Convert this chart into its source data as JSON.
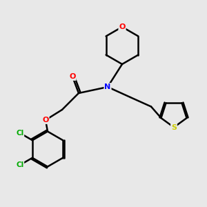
{
  "background_color": "#e8e8e8",
  "atom_colors": {
    "C": "#000000",
    "N": "#0000ff",
    "O": "#ff0000",
    "S": "#cccc00",
    "Cl": "#00aa00"
  },
  "bond_color": "#000000",
  "bond_width": 1.8,
  "figsize": [
    3.0,
    3.0
  ],
  "dpi": 100,
  "xlim": [
    0,
    10
  ],
  "ylim": [
    0,
    10
  ]
}
